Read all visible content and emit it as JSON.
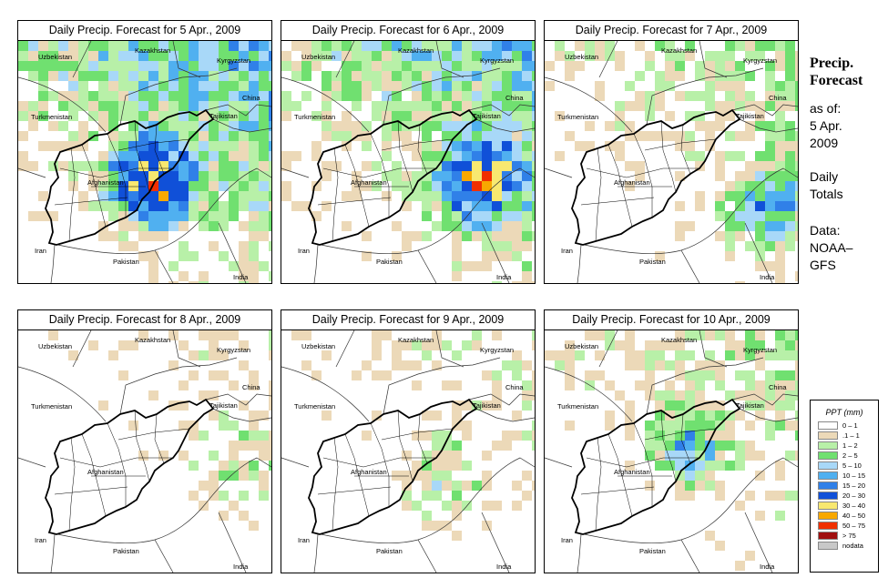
{
  "panels": [
    {
      "title": "Daily Precip. Forecast for  5 Apr., 2009",
      "intensity": 1.0
    },
    {
      "title": "Daily Precip. Forecast for  6 Apr., 2009",
      "intensity": 0.9
    },
    {
      "title": "Daily Precip. Forecast for  7 Apr., 2009",
      "intensity": 0.6
    },
    {
      "title": "Daily Precip. Forecast for  8 Apr., 2009",
      "intensity": 0.35
    },
    {
      "title": "Daily Precip. Forecast for  9 Apr., 2009",
      "intensity": 0.4
    },
    {
      "title": "Daily Precip. Forecast for  10 Apr., 2009",
      "intensity": 0.55
    }
  ],
  "country_labels": {
    "uzbekistan": "Uzbekistan",
    "kazakhstan": "Kazakhstan",
    "kyrgyzstan": "Kyrgyzstan",
    "china": "China",
    "turkmenistan": "Turkmenistan",
    "tajikistan": "Tajikistan",
    "afghanistan": "Afghanistan",
    "iran": "Iran",
    "pakistan": "Pakistan",
    "india": "India"
  },
  "sidebar": {
    "title_line1": "Precip.",
    "title_line2": "Forecast",
    "asof_label": "as of:",
    "date_line1": "5 Apr.",
    "date_line2": "2009",
    "period_line1": "Daily",
    "period_line2": "Totals",
    "data_line1": "Data:",
    "data_line2": "NOAA–",
    "data_line3": "GFS"
  },
  "legend": {
    "title": "PPT (mm)",
    "items": [
      {
        "label": "0 – 1",
        "color": "#ffffff"
      },
      {
        "label": ".1 – 1",
        "color": "#ecd9b8"
      },
      {
        "label": "1 – 2",
        "color": "#b8f0a8"
      },
      {
        "label": "2 – 5",
        "color": "#70e070"
      },
      {
        "label": "5 – 10",
        "color": "#a8d8f8"
      },
      {
        "label": "10 – 15",
        "color": "#50b0f0"
      },
      {
        "label": "15 – 20",
        "color": "#3080e8"
      },
      {
        "label": "20 – 30",
        "color": "#1050d8"
      },
      {
        "label": "30 – 40",
        "color": "#f8e870"
      },
      {
        "label": "40 – 50",
        "color": "#f8a800"
      },
      {
        "label": "50 – 75",
        "color": "#f03000"
      },
      {
        "label": "> 75",
        "color": "#a01010"
      },
      {
        "label": "nodata",
        "color": "#c8c8c8"
      }
    ]
  }
}
